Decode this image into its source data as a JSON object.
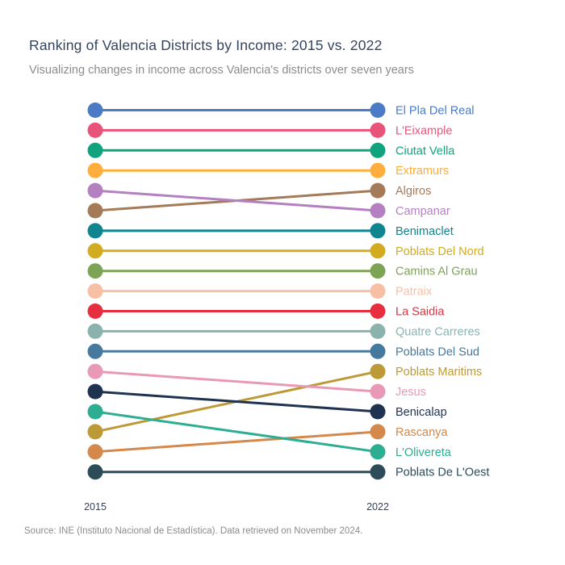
{
  "header": {
    "title": "Ranking of Valencia Districts by Income: 2015 vs. 2022",
    "subtitle": "Visualizing changes in income across Valencia's districts over seven years"
  },
  "footer": {
    "source": "Source: INE (Instituto Nacional de Estadística). Data retrieved on November 2024."
  },
  "colors": {
    "title": "#34435e",
    "subtitle": "#8c8c8c",
    "footer": "#8c8c8c",
    "axis_label": "#34435e",
    "background": "#ffffff"
  },
  "chart_data": {
    "type": "line",
    "subtype": "slope-rank-chart",
    "x_labels": [
      "2015",
      "2022"
    ],
    "rank_range": [
      1,
      19
    ],
    "legend_position": "right-of-2022-points",
    "grid": false,
    "districts": [
      {
        "name": "El Pla Del Real",
        "rank_2015": 1,
        "rank_2022": 1,
        "color": "#4a7bc4"
      },
      {
        "name": "L'Eixample",
        "rank_2015": 2,
        "rank_2022": 2,
        "color": "#e8537a"
      },
      {
        "name": "Ciutat Vella",
        "rank_2015": 3,
        "rank_2022": 3,
        "color": "#10a37e"
      },
      {
        "name": "Extramurs",
        "rank_2015": 4,
        "rank_2022": 4,
        "color": "#fdae3c"
      },
      {
        "name": "Algiros",
        "rank_2015": 6,
        "rank_2022": 5,
        "color": "#a57a58"
      },
      {
        "name": "Campanar",
        "rank_2015": 5,
        "rank_2022": 6,
        "color": "#b580c2"
      },
      {
        "name": "Benimaclet",
        "rank_2015": 7,
        "rank_2022": 7,
        "color": "#0e858f"
      },
      {
        "name": "Poblats Del Nord",
        "rank_2015": 8,
        "rank_2022": 8,
        "color": "#d2ab21"
      },
      {
        "name": "Camins Al Grau",
        "rank_2015": 9,
        "rank_2022": 9,
        "color": "#7da355"
      },
      {
        "name": "Patraix",
        "rank_2015": 10,
        "rank_2022": 10,
        "color": "#f7c0a5"
      },
      {
        "name": "La Saidia",
        "rank_2015": 11,
        "rank_2022": 11,
        "color": "#e62e3e"
      },
      {
        "name": "Quatre Carreres",
        "rank_2015": 12,
        "rank_2022": 12,
        "color": "#8ab3ad"
      },
      {
        "name": "Poblats Del Sud",
        "rank_2015": 13,
        "rank_2022": 13,
        "color": "#45799e"
      },
      {
        "name": "Poblats Maritims",
        "rank_2015": 17,
        "rank_2022": 14,
        "color": "#bd9a38"
      },
      {
        "name": "Jesus",
        "rank_2015": 14,
        "rank_2022": 15,
        "color": "#e999b5"
      },
      {
        "name": "Benicalap",
        "rank_2015": 15,
        "rank_2022": 16,
        "color": "#1f3351"
      },
      {
        "name": "Rascanya",
        "rank_2015": 18,
        "rank_2022": 17,
        "color": "#d5884b"
      },
      {
        "name": "L'Olivereta",
        "rank_2015": 16,
        "rank_2022": 18,
        "color": "#2dae92"
      },
      {
        "name": "Poblats De L'Oest",
        "rank_2015": 19,
        "rank_2022": 19,
        "color": "#2b4c58"
      }
    ]
  }
}
